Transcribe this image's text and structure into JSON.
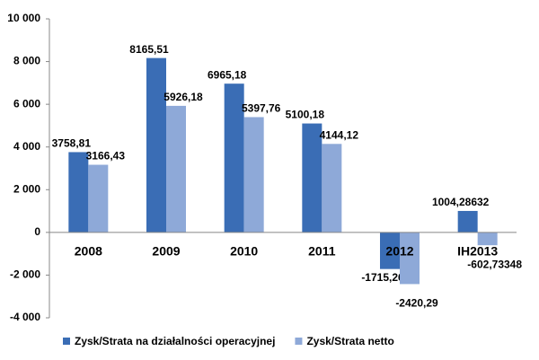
{
  "chart_data": {
    "type": "bar",
    "categories": [
      "2008",
      "2009",
      "2010",
      "2011",
      "2012",
      "IH2013"
    ],
    "series": [
      {
        "name": "Zysk/Strata na działalności operacyjnej",
        "color": "#3a6db5",
        "values": [
          3758.81,
          8165.51,
          6965.18,
          5100.18,
          -1715.26,
          1004.28632
        ],
        "value_labels": [
          "3758,81",
          "8165,51",
          "6965,18",
          "5100,18",
          "-1715,26",
          "1004,28632"
        ]
      },
      {
        "name": "Zysk/Strata netto",
        "color": "#8ea9d8",
        "values": [
          3166.43,
          5926.18,
          5397.76,
          4144.12,
          -2420.29,
          -602.73348
        ],
        "value_labels": [
          "3166,43",
          "5926,18",
          "5397,76",
          "4144,12",
          "-2420,29",
          "-602,73348"
        ]
      }
    ],
    "ylim": [
      -4000,
      10000
    ],
    "yticks": [
      {
        "value": -4000,
        "label": "-4 000"
      },
      {
        "value": -2000,
        "label": "-2 000"
      },
      0,
      {
        "value": 2000,
        "label": "2 000"
      },
      {
        "value": 4000,
        "label": "4 000"
      },
      {
        "value": 6000,
        "label": "6 000"
      },
      {
        "value": 8000,
        "label": "8 000"
      },
      {
        "value": 10000,
        "label": "10 000"
      }
    ],
    "grid": false
  }
}
